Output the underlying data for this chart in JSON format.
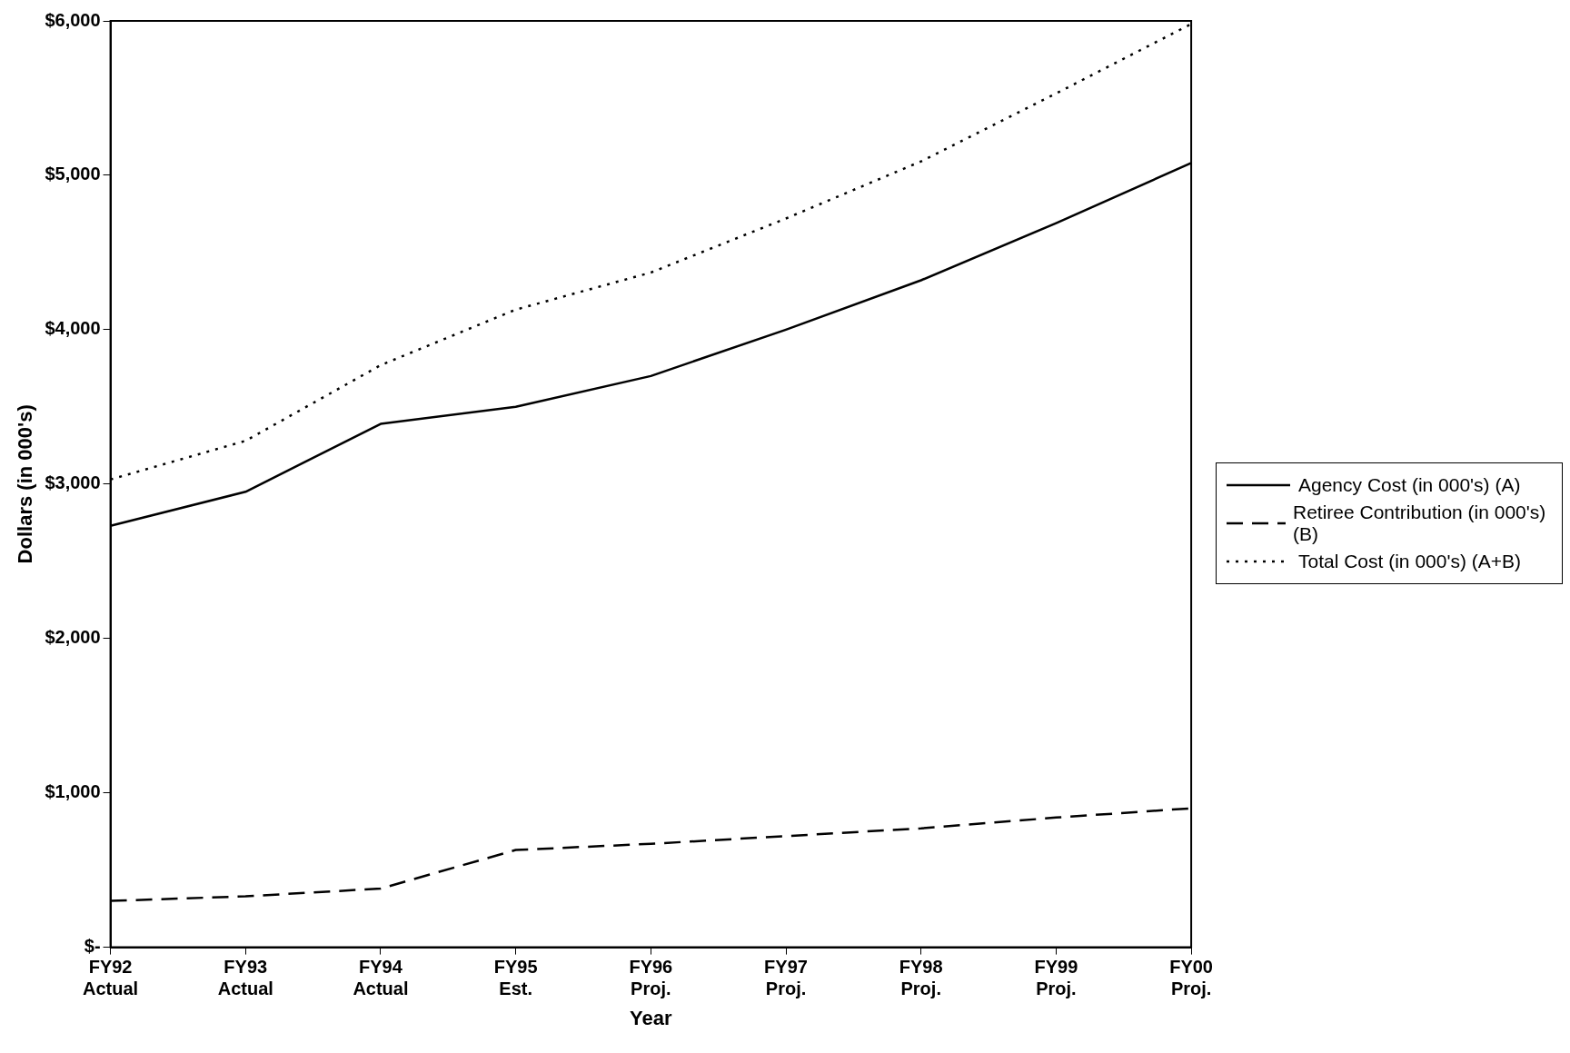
{
  "chart_data": {
    "type": "line",
    "xlabel": "Year",
    "ylabel": "Dollars (in 000's)",
    "categories": [
      "FY92 Actual",
      "FY93 Actual",
      "FY94 Actual",
      "FY95 Est.",
      "FY96 Proj.",
      "FY97 Proj.",
      "FY98 Proj.",
      "FY99 Proj.",
      "FY00 Proj."
    ],
    "series": [
      {
        "name": "Agency Cost (in 000's) (A)",
        "color": "#000000",
        "line_style": "solid",
        "values": [
          2730,
          2950,
          3390,
          3500,
          3700,
          4000,
          4320,
          4690,
          5080
        ]
      },
      {
        "name": "Retiree Contribution (in 000's) (B)",
        "color": "#000000",
        "line_style": "dashed",
        "values": [
          300,
          330,
          380,
          630,
          670,
          720,
          770,
          840,
          900
        ]
      },
      {
        "name": "Total Cost (in 000's) (A+B)",
        "color": "#000000",
        "line_style": "dotted",
        "values": [
          3030,
          3280,
          3770,
          4130,
          4370,
          4720,
          5090,
          5530,
          5980
        ]
      }
    ],
    "ylim": [
      0,
      6000
    ],
    "yticks": [
      {
        "value": 0,
        "label": "$-"
      },
      {
        "value": 1000,
        "label": "$1,000"
      },
      {
        "value": 2000,
        "label": "$2,000"
      },
      {
        "value": 3000,
        "label": "$3,000"
      },
      {
        "value": 4000,
        "label": "$4,000"
      },
      {
        "value": 5000,
        "label": "$5,000"
      },
      {
        "value": 6000,
        "label": "$6,000"
      }
    ],
    "grid": false,
    "legend": "right",
    "marker": "none"
  }
}
